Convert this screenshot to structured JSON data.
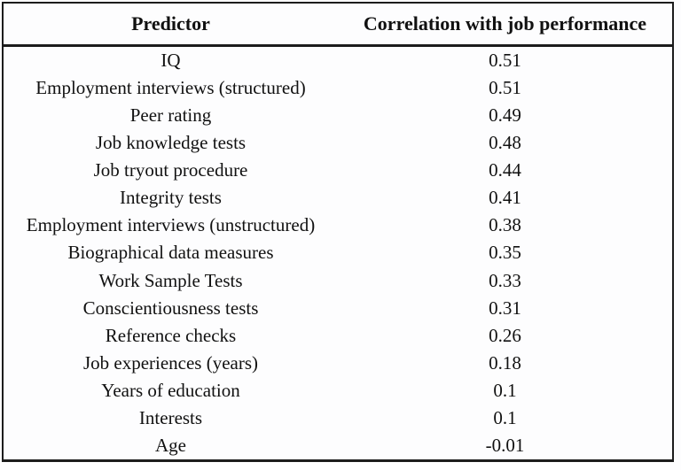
{
  "table": {
    "columns": [
      "Predictor",
      "Correlation with job performance"
    ],
    "rows": [
      {
        "predictor": "IQ",
        "correlation": "0.51"
      },
      {
        "predictor": "Employment interviews (structured)",
        "correlation": "0.51"
      },
      {
        "predictor": "Peer rating",
        "correlation": "0.49"
      },
      {
        "predictor": "Job knowledge tests",
        "correlation": "0.48"
      },
      {
        "predictor": "Job tryout procedure",
        "correlation": "0.44"
      },
      {
        "predictor": "Integrity tests",
        "correlation": "0.41"
      },
      {
        "predictor": "Employment interviews (unstructured)",
        "correlation": "0.38"
      },
      {
        "predictor": "Biographical data measures",
        "correlation": "0.35"
      },
      {
        "predictor": "Work Sample Tests",
        "correlation": "0.33"
      },
      {
        "predictor": "Conscientiousness tests",
        "correlation": "0.31"
      },
      {
        "predictor": "Reference checks",
        "correlation": "0.26"
      },
      {
        "predictor": "Job experiences (years)",
        "correlation": "0.18"
      },
      {
        "predictor": "Years of education",
        "correlation": "0.1"
      },
      {
        "predictor": "Interests",
        "correlation": "0.1"
      },
      {
        "predictor": "Age",
        "correlation": "-0.01"
      }
    ]
  },
  "colors": {
    "text": "#111111",
    "border": "#1c1c1c",
    "background": "#fdfdfe"
  }
}
